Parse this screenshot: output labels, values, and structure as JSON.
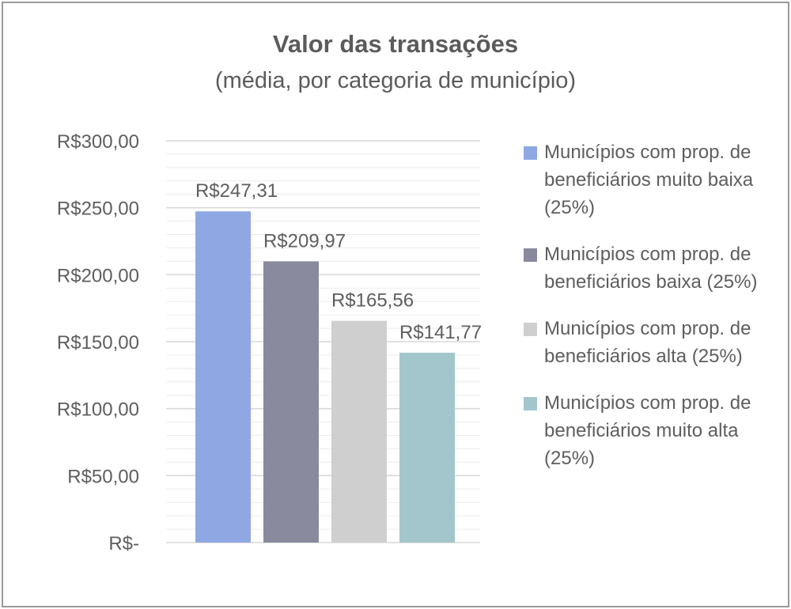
{
  "chart_data": {
    "type": "bar",
    "title": "Valor das transações",
    "subtitle": "(média, por categoria de município)",
    "xlabel": "",
    "ylabel": "",
    "ylim": [
      0,
      300
    ],
    "yticks": [
      0,
      50,
      100,
      150,
      200,
      250,
      300
    ],
    "ytick_labels": [
      "R$-",
      "R$50,00",
      "R$100,00",
      "R$150,00",
      "R$200,00",
      "R$250,00",
      "R$300,00"
    ],
    "grid": true,
    "legend_position": "right",
    "series": [
      {
        "name": "Municípios com prop. de beneficiários muito baixa (25%)",
        "value": 247.31,
        "label": "R$247,31",
        "color": "#8fa8e4"
      },
      {
        "name": "Municípios com prop. de beneficiários baixa (25%)",
        "value": 209.97,
        "label": "R$209,97",
        "color": "#8a8a9e"
      },
      {
        "name": "Municípios com prop. de beneficiários alta (25%)",
        "value": 165.56,
        "label": "R$165,56",
        "color": "#cfcfcf"
      },
      {
        "name": "Municípios com prop. de beneficiários muito alta (25%)",
        "value": 141.77,
        "label": "R$141,77",
        "color": "#a3c6cc"
      }
    ]
  }
}
